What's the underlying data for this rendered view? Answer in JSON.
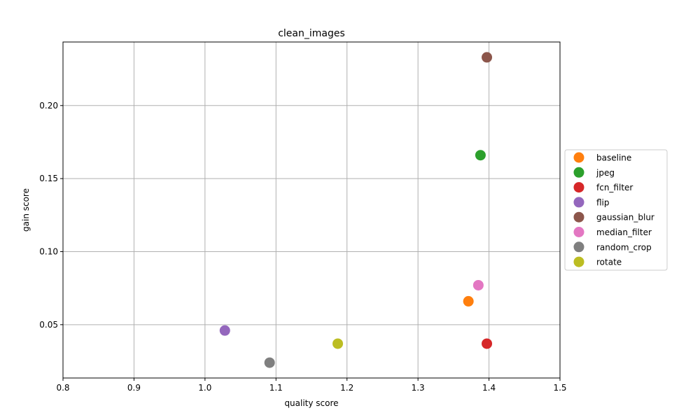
{
  "chart_data": {
    "type": "scatter",
    "title": "clean_images",
    "xlabel": "quality score",
    "ylabel": "gain score",
    "xlim": [
      0.8,
      1.5
    ],
    "ylim": [
      0.0135,
      0.2435
    ],
    "xticks": [
      0.8,
      0.9,
      1.0,
      1.1,
      1.2,
      1.3,
      1.4,
      1.5
    ],
    "xtick_labels": [
      "0.8",
      "0.9",
      "1.0",
      "1.1",
      "1.2",
      "1.3",
      "1.4",
      "1.5"
    ],
    "yticks": [
      0.05,
      0.1,
      0.15,
      0.2
    ],
    "ytick_labels": [
      "0.05",
      "0.10",
      "0.15",
      "0.20"
    ],
    "grid": true,
    "legend_position": "center-right outside",
    "series": [
      {
        "name": "baseline",
        "color": "#ff7f0e",
        "x": [
          1.371
        ],
        "y": [
          0.066
        ]
      },
      {
        "name": "jpeg",
        "color": "#2ca02c",
        "x": [
          1.388
        ],
        "y": [
          0.166
        ]
      },
      {
        "name": "fcn_filter",
        "color": "#d62728",
        "x": [
          1.397
        ],
        "y": [
          0.037
        ]
      },
      {
        "name": "flip",
        "color": "#9467bd",
        "x": [
          1.028
        ],
        "y": [
          0.046
        ]
      },
      {
        "name": "gaussian_blur",
        "color": "#8c564b",
        "x": [
          1.397
        ],
        "y": [
          0.233
        ]
      },
      {
        "name": "median_filter",
        "color": "#e377c2",
        "x": [
          1.385
        ],
        "y": [
          0.077
        ]
      },
      {
        "name": "random_crop",
        "color": "#7f7f7f",
        "x": [
          1.091
        ],
        "y": [
          0.024
        ]
      },
      {
        "name": "rotate",
        "color": "#bcbd22",
        "x": [
          1.187
        ],
        "y": [
          0.037
        ]
      }
    ]
  }
}
